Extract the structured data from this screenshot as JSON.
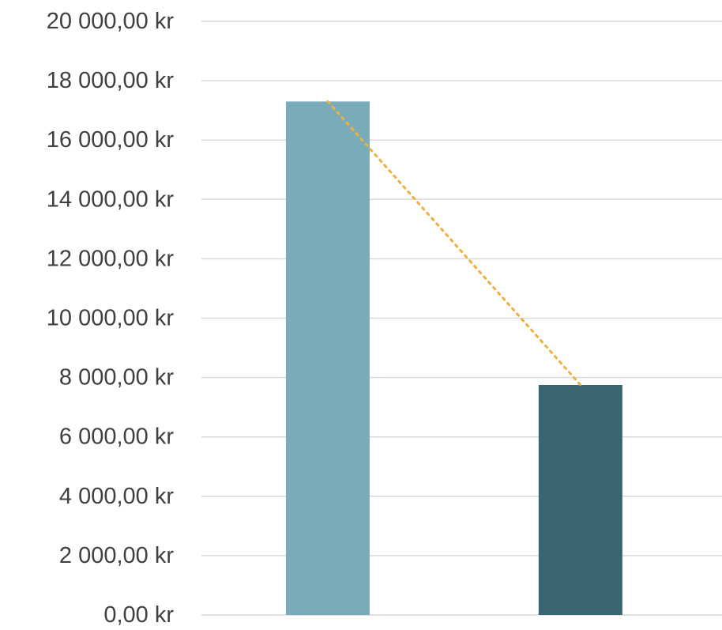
{
  "chart_data": {
    "type": "bar",
    "categories": [
      "",
      ""
    ],
    "values": [
      17300,
      7750
    ],
    "ylim": [
      0,
      20000
    ],
    "y_ticks": [
      "0,00 kr",
      "2 000,00 kr",
      "4 000,00 kr",
      "6 000,00 kr",
      "8 000,00 kr",
      "10 000,00 kr",
      "12 000,00 kr",
      "14 000,00 kr",
      "16 000,00 kr",
      "18 000,00 kr",
      "20 000,00 kr"
    ],
    "y_tick_step": 2000,
    "grid": true,
    "legend": "none",
    "bar_colors": [
      "#7aabb9",
      "#386570"
    ],
    "trendline": {
      "type": "linear",
      "style": "dotted",
      "color": "#f0b040"
    },
    "grid_color": "#d9d9d9",
    "tick_label_color": "#404040"
  }
}
